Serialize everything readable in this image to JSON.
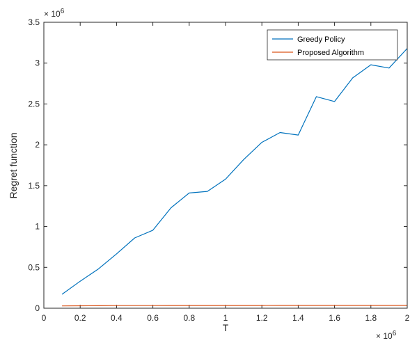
{
  "chart_data": {
    "type": "line",
    "title": "",
    "xlabel": "T",
    "ylabel": "Regret function",
    "x_exponent_label": "× 10^6",
    "y_exponent_label": "× 10^6",
    "x_multiplier": 1000000,
    "y_multiplier": 1000000,
    "xlim": [
      0,
      2000000
    ],
    "ylim": [
      0,
      3500000
    ],
    "x_ticks": [
      0,
      200000,
      400000,
      600000,
      800000,
      1000000,
      1200000,
      1400000,
      1600000,
      1800000,
      2000000
    ],
    "x_tick_labels": [
      "0",
      "0.2",
      "0.4",
      "0.6",
      "0.8",
      "1",
      "1.2",
      "1.4",
      "1.6",
      "1.8",
      "2"
    ],
    "y_ticks": [
      0,
      500000,
      1000000,
      1500000,
      2000000,
      2500000,
      3000000,
      3500000
    ],
    "y_tick_labels": [
      "0",
      "0.5",
      "1",
      "1.5",
      "2",
      "2.5",
      "3",
      "3.5"
    ],
    "grid": false,
    "legend_position": "top-right",
    "x": [
      100000,
      200000,
      300000,
      400000,
      500000,
      600000,
      700000,
      800000,
      900000,
      1000000,
      1100000,
      1200000,
      1300000,
      1400000,
      1500000,
      1600000,
      1700000,
      1800000,
      1900000,
      2000000
    ],
    "series": [
      {
        "name": "Greedy Policy",
        "color": "#0072BD",
        "values": [
          170000,
          330000,
          480000,
          665000,
          860000,
          955000,
          1230000,
          1410000,
          1430000,
          1580000,
          1820000,
          2030000,
          2150000,
          2120000,
          2590000,
          2530000,
          2820000,
          2980000,
          2940000,
          3180000
        ]
      },
      {
        "name": "Proposed Algorithm",
        "color": "#D95319",
        "values": [
          28000,
          30000,
          31000,
          32000,
          32000,
          32500,
          33000,
          33000,
          33000,
          33500,
          33500,
          33500,
          34000,
          34000,
          34000,
          34000,
          34000,
          34000,
          34000,
          34000
        ]
      }
    ]
  }
}
